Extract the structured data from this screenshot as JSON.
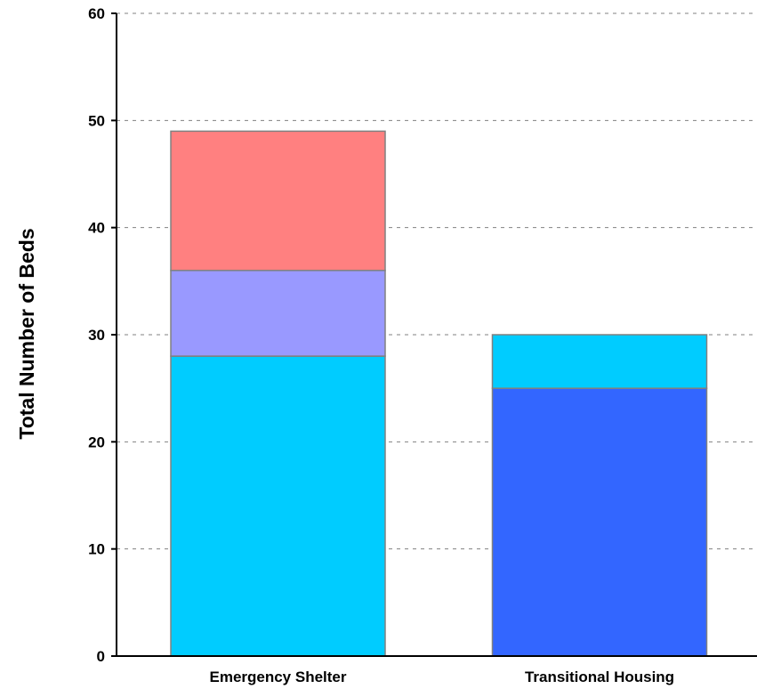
{
  "chart_data": {
    "type": "bar",
    "stacked": true,
    "title": "",
    "xlabel": "",
    "ylabel": "Total Number of Beds",
    "ylim": [
      0,
      60
    ],
    "yticks": [
      0,
      10,
      20,
      30,
      40,
      50,
      60
    ],
    "grid": true,
    "legend": "none",
    "categories": [
      "Emergency Shelter",
      "Transitional Housing"
    ],
    "stacks": [
      {
        "category": "Emergency Shelter",
        "segments": [
          {
            "value": 28,
            "color": "#00CCFF"
          },
          {
            "value": 8,
            "color": "#9999FF"
          },
          {
            "value": 13,
            "color": "#FF8080"
          }
        ]
      },
      {
        "category": "Transitional Housing",
        "segments": [
          {
            "value": 25,
            "color": "#3366FF"
          },
          {
            "value": 5,
            "color": "#00CCFF"
          }
        ]
      }
    ]
  }
}
